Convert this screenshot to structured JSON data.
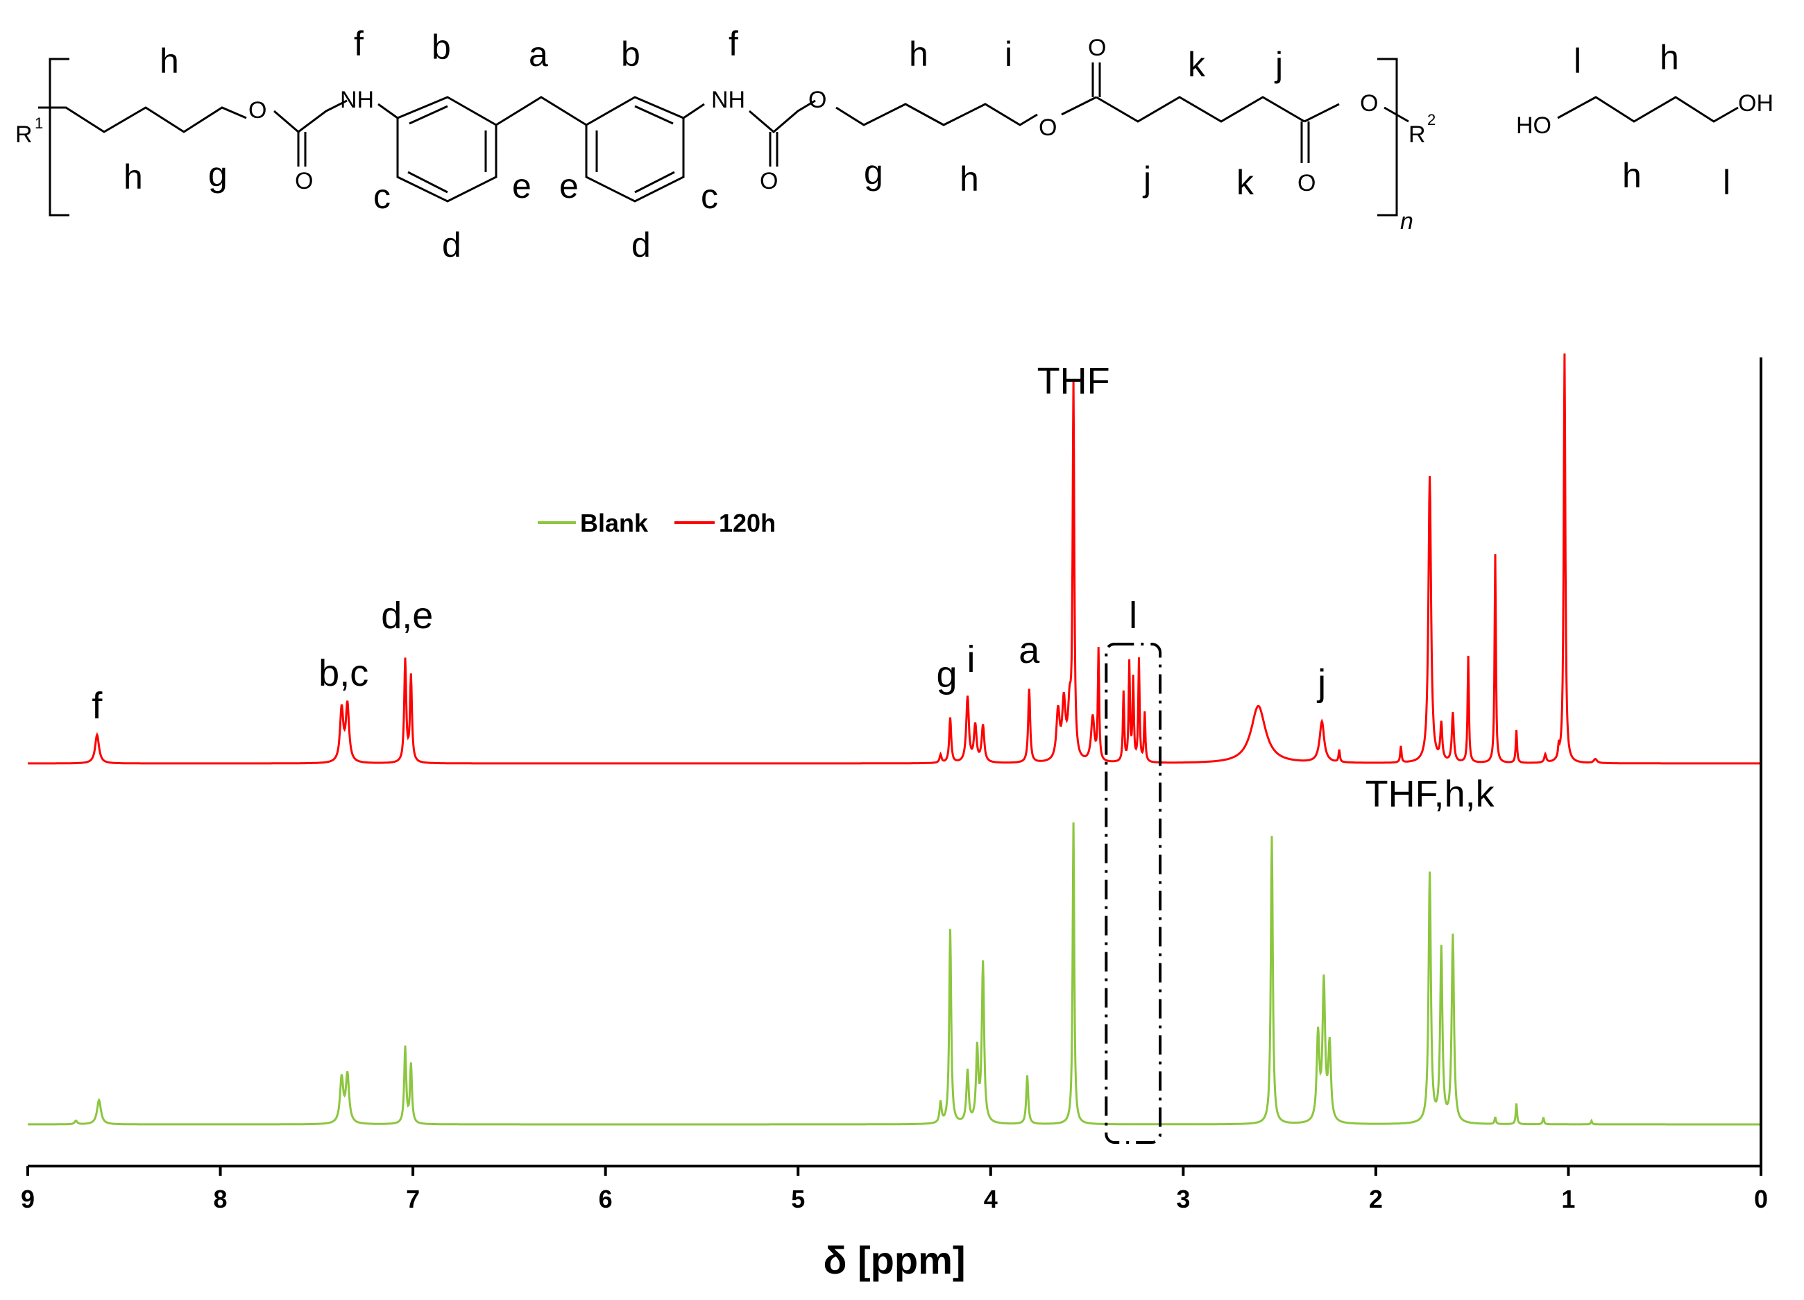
{
  "structure": {
    "polymer_labels": [
      "h",
      "f",
      "b",
      "a",
      "b",
      "f",
      "h",
      "i",
      "k",
      "j",
      "h",
      "g",
      "c",
      "e",
      "e",
      "c",
      "g",
      "h",
      "j",
      "k",
      "d",
      "d"
    ],
    "monomer_labels": [
      "l",
      "h",
      "h",
      "l"
    ],
    "atoms": {
      "r1": "R",
      "r1_sup": "1",
      "r2": "R",
      "r2_sup": "2",
      "nh": "NH",
      "o": "O",
      "ho": "HO",
      "oh": "OH",
      "n": "n"
    }
  },
  "chart_data": {
    "type": "line",
    "xlabel": "δ [ppm]",
    "xlim": [
      9,
      0
    ],
    "x_reversed": true,
    "x_ticks": [
      9,
      8,
      7,
      6,
      5,
      4,
      3,
      2,
      1,
      0
    ],
    "x_tick_labels": [
      "9",
      "8",
      "7",
      "6",
      "5",
      "4",
      "3",
      "2",
      "1",
      "0"
    ],
    "legend": {
      "placement": "upper-left-center",
      "entries": [
        "Blank",
        "120h"
      ]
    },
    "series": [
      {
        "name": "120h",
        "color": "#ff0000",
        "baseline_relative": 0.0,
        "peaks": [
          {
            "ppm": 8.64,
            "height": 0.07,
            "width": 0.012
          },
          {
            "ppm": 7.37,
            "height": 0.13,
            "width": 0.01
          },
          {
            "ppm": 7.34,
            "height": 0.14,
            "width": 0.01
          },
          {
            "ppm": 7.04,
            "height": 0.25,
            "width": 0.006
          },
          {
            "ppm": 7.01,
            "height": 0.21,
            "width": 0.006
          },
          {
            "ppm": 4.26,
            "height": 0.02,
            "width": 0.006
          },
          {
            "ppm": 4.21,
            "height": 0.11,
            "width": 0.006
          },
          {
            "ppm": 4.12,
            "height": 0.16,
            "width": 0.008
          },
          {
            "ppm": 4.08,
            "height": 0.09,
            "width": 0.008
          },
          {
            "ppm": 4.04,
            "height": 0.09,
            "width": 0.008
          },
          {
            "ppm": 3.8,
            "height": 0.18,
            "width": 0.006
          },
          {
            "ppm": 3.65,
            "height": 0.12,
            "width": 0.01
          },
          {
            "ppm": 3.62,
            "height": 0.14,
            "width": 0.01
          },
          {
            "ppm": 3.59,
            "height": 0.12,
            "width": 0.01
          },
          {
            "ppm": 3.57,
            "height": 0.9,
            "width": 0.005
          },
          {
            "ppm": 3.47,
            "height": 0.11,
            "width": 0.01
          },
          {
            "ppm": 3.44,
            "height": 0.27,
            "width": 0.004
          },
          {
            "ppm": 3.31,
            "height": 0.17,
            "width": 0.004
          },
          {
            "ppm": 3.28,
            "height": 0.24,
            "width": 0.004
          },
          {
            "ppm": 3.26,
            "height": 0.2,
            "width": 0.004
          },
          {
            "ppm": 3.23,
            "height": 0.25,
            "width": 0.004
          },
          {
            "ppm": 3.2,
            "height": 0.12,
            "width": 0.004
          },
          {
            "ppm": 2.61,
            "height": 0.14,
            "width": 0.045
          },
          {
            "ppm": 2.28,
            "height": 0.1,
            "width": 0.014
          },
          {
            "ppm": 2.19,
            "height": 0.03,
            "width": 0.004
          },
          {
            "ppm": 1.87,
            "height": 0.04,
            "width": 0.004
          },
          {
            "ppm": 1.72,
            "height": 0.7,
            "width": 0.008
          },
          {
            "ppm": 1.66,
            "height": 0.09,
            "width": 0.006
          },
          {
            "ppm": 1.6,
            "height": 0.12,
            "width": 0.006
          },
          {
            "ppm": 1.52,
            "height": 0.26,
            "width": 0.004
          },
          {
            "ppm": 1.38,
            "height": 0.51,
            "width": 0.004
          },
          {
            "ppm": 1.27,
            "height": 0.08,
            "width": 0.004
          },
          {
            "ppm": 1.12,
            "height": 0.02,
            "width": 0.006
          },
          {
            "ppm": 1.05,
            "height": 0.03,
            "width": 0.004
          },
          {
            "ppm": 1.02,
            "height": 1.0,
            "width": 0.005
          },
          {
            "ppm": 0.86,
            "height": 0.01,
            "width": 0.01
          }
        ]
      },
      {
        "name": "Blank",
        "color": "#8cc63f",
        "baseline_relative": -0.9,
        "peaks": [
          {
            "ppm": 8.75,
            "height": 0.01,
            "width": 0.008
          },
          {
            "ppm": 8.63,
            "height": 0.07,
            "width": 0.012
          },
          {
            "ppm": 7.37,
            "height": 0.13,
            "width": 0.01
          },
          {
            "ppm": 7.34,
            "height": 0.14,
            "width": 0.01
          },
          {
            "ppm": 7.04,
            "height": 0.22,
            "width": 0.006
          },
          {
            "ppm": 7.01,
            "height": 0.17,
            "width": 0.006
          },
          {
            "ppm": 4.26,
            "height": 0.06,
            "width": 0.006
          },
          {
            "ppm": 4.21,
            "height": 0.56,
            "width": 0.006
          },
          {
            "ppm": 4.12,
            "height": 0.15,
            "width": 0.007
          },
          {
            "ppm": 4.07,
            "height": 0.21,
            "width": 0.007
          },
          {
            "ppm": 4.04,
            "height": 0.46,
            "width": 0.007
          },
          {
            "ppm": 3.81,
            "height": 0.14,
            "width": 0.006
          },
          {
            "ppm": 3.57,
            "height": 0.87,
            "width": 0.005
          },
          {
            "ppm": 2.54,
            "height": 0.83,
            "width": 0.006
          },
          {
            "ppm": 2.3,
            "height": 0.25,
            "width": 0.008
          },
          {
            "ppm": 2.27,
            "height": 0.4,
            "width": 0.008
          },
          {
            "ppm": 2.24,
            "height": 0.22,
            "width": 0.008
          },
          {
            "ppm": 1.72,
            "height": 0.72,
            "width": 0.007
          },
          {
            "ppm": 1.66,
            "height": 0.5,
            "width": 0.007
          },
          {
            "ppm": 1.6,
            "height": 0.54,
            "width": 0.007
          },
          {
            "ppm": 1.38,
            "height": 0.02,
            "width": 0.004
          },
          {
            "ppm": 1.27,
            "height": 0.06,
            "width": 0.004
          },
          {
            "ppm": 1.13,
            "height": 0.02,
            "width": 0.004
          },
          {
            "ppm": 0.88,
            "height": 0.01,
            "width": 0.004
          }
        ]
      }
    ],
    "annotations": [
      {
        "text": "f",
        "ppm": 8.64
      },
      {
        "text": "b,c",
        "ppm": 7.36
      },
      {
        "text": "d,e",
        "ppm": 7.03
      },
      {
        "text": "g",
        "ppm": 4.21
      },
      {
        "text": "i",
        "ppm": 4.12
      },
      {
        "text": "a",
        "ppm": 3.8
      },
      {
        "text": "THF",
        "ppm": 3.57
      },
      {
        "text": "l",
        "ppm": 3.26
      },
      {
        "text": "j",
        "ppm": 2.28
      },
      {
        "text": "THF,h,k",
        "ppm": 1.72
      }
    ],
    "highlight_box": {
      "ppm_from": 3.4,
      "ppm_to": 3.12,
      "style": "dash-dot"
    }
  }
}
